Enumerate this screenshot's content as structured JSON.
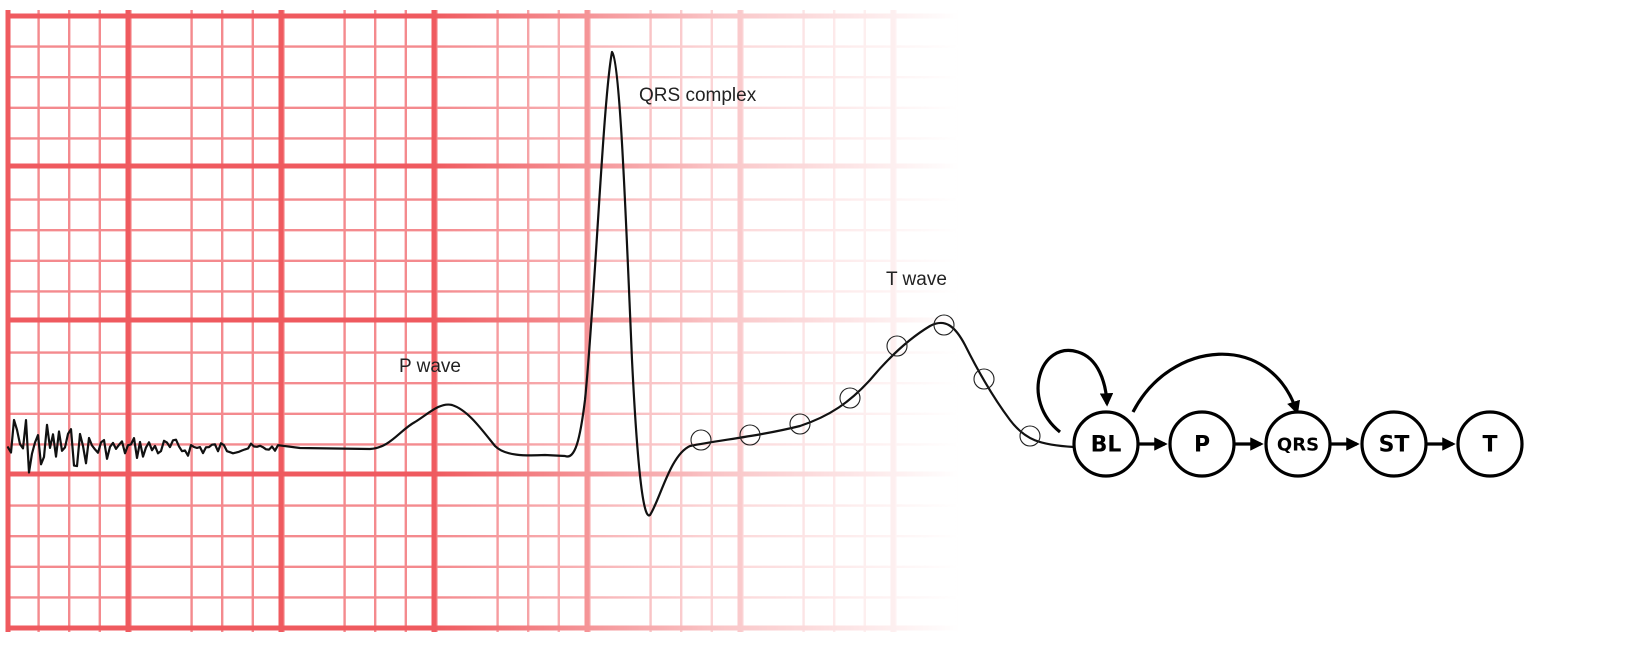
{
  "ecg": {
    "labels": {
      "qrs": "QRS complex",
      "t_wave": "T wave",
      "p_wave": "P wave"
    },
    "colors": {
      "grid_major": "#ef5a5f",
      "grid_minor": "#f48a8e",
      "trace": "#111111"
    }
  },
  "state_diagram": {
    "nodes": [
      {
        "id": "BL",
        "label": "BL"
      },
      {
        "id": "P",
        "label": "P"
      },
      {
        "id": "QRS",
        "label": "QRS"
      },
      {
        "id": "ST",
        "label": "ST"
      },
      {
        "id": "T",
        "label": "T"
      }
    ],
    "edges": [
      {
        "from": "BL",
        "to": "BL"
      },
      {
        "from": "BL",
        "to": "QRS"
      },
      {
        "from": "BL",
        "to": "P"
      },
      {
        "from": "P",
        "to": "QRS"
      },
      {
        "from": "QRS",
        "to": "ST"
      },
      {
        "from": "ST",
        "to": "T"
      }
    ]
  }
}
